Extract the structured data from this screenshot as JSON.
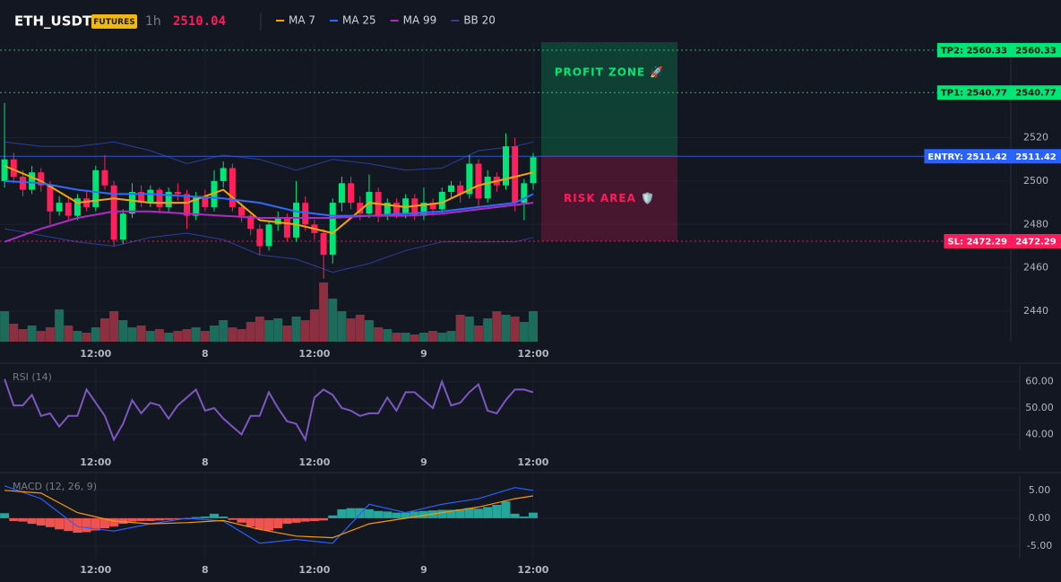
{
  "header": {
    "symbol": "ETH_USDT",
    "badge": "FUTURES",
    "interval": "1h",
    "price": 2510.04
  },
  "chart_data": [
    {
      "type": "candlestick",
      "x": [
        0,
        1,
        2,
        3,
        4,
        5,
        6,
        7,
        8,
        9,
        10,
        11,
        12,
        13,
        14,
        15,
        16,
        17,
        18,
        19,
        20,
        21,
        22,
        23,
        24,
        25,
        26,
        27,
        28,
        29,
        30,
        31,
        32,
        33,
        34,
        35,
        36,
        37,
        38,
        39,
        40,
        41,
        42,
        43,
        44,
        45,
        46,
        47,
        48,
        49,
        50,
        51,
        52,
        53,
        54,
        55,
        56,
        57,
        58
      ],
      "open": [
        2500,
        2510,
        2502,
        2496,
        2504,
        2498,
        2486,
        2490,
        2484,
        2492,
        2488,
        2505,
        2498,
        2473,
        2485,
        2495,
        2490,
        2496,
        2488,
        2495,
        2494,
        2484,
        2493,
        2488,
        2500,
        2506,
        2488,
        2484,
        2478,
        2470,
        2480,
        2483,
        2474,
        2490,
        2480,
        2476,
        2466,
        2490,
        2499,
        2490,
        2485,
        2495,
        2484,
        2490,
        2485,
        2492,
        2484,
        2490,
        2487,
        2495,
        2498,
        2494,
        2508,
        2492,
        2502,
        2498,
        2516,
        2490,
        2499
      ],
      "high": [
        2536,
        2513,
        2505,
        2507,
        2506,
        2500,
        2493,
        2492,
        2494,
        2495,
        2507,
        2512,
        2500,
        2487,
        2499,
        2498,
        2498,
        2497,
        2497,
        2499,
        2496,
        2495,
        2496,
        2505,
        2509,
        2508,
        2490,
        2486,
        2480,
        2482,
        2486,
        2485,
        2500,
        2493,
        2482,
        2478,
        2492,
        2502,
        2502,
        2493,
        2503,
        2497,
        2492,
        2492,
        2494,
        2494,
        2497,
        2492,
        2497,
        2500,
        2500,
        2512,
        2510,
        2505,
        2504,
        2522,
        2520,
        2501,
        2513
      ],
      "low": [
        2497,
        2499,
        2493,
        2494,
        2495,
        2480,
        2484,
        2482,
        2482,
        2486,
        2486,
        2496,
        2470,
        2471,
        2483,
        2488,
        2488,
        2485,
        2486,
        2491,
        2478,
        2482,
        2486,
        2486,
        2497,
        2486,
        2481,
        2475,
        2466,
        2468,
        2477,
        2472,
        2472,
        2477,
        2473,
        2455,
        2462,
        2486,
        2487,
        2482,
        2483,
        2481,
        2482,
        2483,
        2483,
        2482,
        2482,
        2484,
        2485,
        2492,
        2490,
        2492,
        2488,
        2490,
        2495,
        2496,
        2486,
        2482,
        2496
      ],
      "close": [
        2510,
        2502,
        2496,
        2504,
        2498,
        2486,
        2490,
        2484,
        2492,
        2488,
        2505,
        2498,
        2473,
        2485,
        2495,
        2490,
        2496,
        2488,
        2495,
        2494,
        2484,
        2493,
        2488,
        2500,
        2506,
        2488,
        2484,
        2478,
        2470,
        2480,
        2483,
        2474,
        2490,
        2480,
        2476,
        2466,
        2490,
        2499,
        2490,
        2485,
        2495,
        2484,
        2490,
        2485,
        2492,
        2484,
        2490,
        2487,
        2495,
        2498,
        2494,
        2508,
        2492,
        2502,
        2498,
        2516,
        2490,
        2499,
        2511
      ],
      "volume": [
        34,
        20,
        14,
        18,
        12,
        16,
        36,
        18,
        12,
        10,
        16,
        26,
        34,
        24,
        16,
        18,
        12,
        14,
        10,
        12,
        14,
        16,
        12,
        18,
        24,
        16,
        14,
        22,
        28,
        24,
        26,
        18,
        28,
        24,
        36,
        66,
        48,
        34,
        26,
        30,
        24,
        16,
        14,
        10,
        10,
        8,
        10,
        12,
        10,
        12,
        30,
        28,
        18,
        26,
        34,
        30,
        28,
        22,
        34
      ],
      "up_color": "#00e676",
      "down_color": "#ff1f5a",
      "volume_up_color": "#1d6b5a",
      "volume_down_color": "#8c2f41",
      "xlim": [
        -0.5,
        110.4
      ],
      "xticks": [
        {
          "value": 10,
          "label": "12:00"
        },
        {
          "value": 22,
          "label": "8"
        },
        {
          "value": 34,
          "label": "12:00"
        },
        {
          "value": 46,
          "label": "9"
        },
        {
          "value": 58,
          "label": "12:00"
        }
      ],
      "ylim": [
        2426,
        2564
      ],
      "yticks": [
        2520,
        2500,
        2480,
        2460,
        2440
      ],
      "grid": true,
      "series": [
        {
          "name": "MA 7",
          "color": "#f7a600",
          "x": [
            0,
            4,
            8,
            12,
            16,
            20,
            24,
            28,
            32,
            36,
            40,
            44,
            48,
            52,
            56,
            58
          ],
          "values": [
            2507,
            2500,
            2490,
            2492,
            2490,
            2490,
            2496,
            2482,
            2480,
            2476,
            2490,
            2488,
            2490,
            2498,
            2502,
            2504
          ]
        },
        {
          "name": "MA 25",
          "color": "#2f6bff",
          "x": [
            0,
            4,
            8,
            12,
            16,
            20,
            24,
            28,
            32,
            36,
            40,
            44,
            48,
            52,
            56,
            58
          ],
          "values": [
            2500,
            2499,
            2496,
            2494,
            2494,
            2493,
            2492,
            2490,
            2486,
            2484,
            2484,
            2485,
            2486,
            2488,
            2490,
            2494
          ]
        },
        {
          "name": "MA 99",
          "color": "#b02bc6",
          "x": [
            0,
            4,
            8,
            12,
            16,
            20,
            24,
            28,
            32,
            36,
            40,
            44,
            48,
            52,
            56,
            58
          ],
          "values": [
            2472,
            2478,
            2483,
            2486,
            2486,
            2485,
            2484,
            2483,
            2483,
            2483,
            2484,
            2484,
            2485,
            2487,
            2489,
            2490
          ]
        }
      ],
      "bands": [
        {
          "name": "BB 20",
          "color": "#2b3f9a",
          "x": [
            0,
            4,
            8,
            12,
            16,
            20,
            24,
            28,
            32,
            36,
            40,
            44,
            48,
            52,
            56,
            58
          ],
          "upper": [
            2518,
            2516,
            2516,
            2518,
            2514,
            2508,
            2512,
            2510,
            2505,
            2510,
            2508,
            2505,
            2506,
            2514,
            2516,
            2518
          ],
          "lower": [
            2478,
            2475,
            2472,
            2470,
            2474,
            2476,
            2473,
            2466,
            2464,
            2458,
            2462,
            2468,
            2472,
            2472,
            2472,
            2474
          ]
        }
      ],
      "levels": [
        {
          "label": "TP2: 2560.33",
          "value": 2560.33,
          "color": "#00e676",
          "text_color": "#0b1a12"
        },
        {
          "label": "TP1: 2540.77",
          "value": 2540.77,
          "color": "#00e676",
          "text_color": "#0b1a12"
        },
        {
          "label": "ENTRY: 2511.42",
          "value": 2511.42,
          "color": "#2962ff",
          "text_color": "#ffffff"
        },
        {
          "label": "SL: 2472.29",
          "value": 2472.29,
          "color": "#ff1a5b",
          "text_color": "#ffffff"
        }
      ],
      "zones": [
        {
          "label": "PROFIT ZONE 🚀",
          "color": "#00e676"
        },
        {
          "label": "RISK AREA 🛡️",
          "color": "#ff1a5b"
        }
      ]
    },
    {
      "type": "line",
      "title": "RSI (14)",
      "color": "#7e57c2",
      "x": [
        0,
        1,
        2,
        3,
        4,
        5,
        6,
        7,
        8,
        9,
        10,
        11,
        12,
        13,
        14,
        15,
        16,
        17,
        18,
        19,
        20,
        21,
        22,
        23,
        24,
        25,
        26,
        27,
        28,
        29,
        30,
        31,
        32,
        33,
        34,
        35,
        36,
        37,
        38,
        39,
        40,
        41,
        42,
        43,
        44,
        45,
        46,
        47,
        48,
        49,
        50,
        51,
        52,
        53,
        54,
        55,
        56,
        57,
        58
      ],
      "values": [
        61,
        51,
        51,
        55,
        47,
        48,
        43,
        47,
        47,
        57,
        52,
        47,
        38,
        44,
        53,
        48,
        52,
        51,
        46,
        51,
        54,
        57,
        49,
        50,
        46,
        43,
        40,
        47,
        47,
        56,
        50,
        45,
        44,
        38,
        54,
        57,
        55,
        50,
        49,
        47,
        48,
        48,
        54,
        49,
        56,
        56,
        53,
        50,
        60,
        51,
        52,
        56,
        59,
        49,
        48,
        53,
        57,
        57,
        56
      ],
      "xlim": [
        -0.5,
        111.4
      ],
      "xticks": [
        {
          "value": 10,
          "label": "12:00"
        },
        {
          "value": 22,
          "label": "8"
        },
        {
          "value": 34,
          "label": "12:00"
        },
        {
          "value": 46,
          "label": "9"
        },
        {
          "value": 58,
          "label": "12:00"
        }
      ],
      "ylim": [
        34,
        66
      ],
      "yticks": [
        {
          "value": 60,
          "label": "60.00"
        },
        {
          "value": 50,
          "label": "50.00"
        },
        {
          "value": 40,
          "label": "40.00"
        }
      ],
      "grid": true
    },
    {
      "type": "macd",
      "title": "MACD (12, 26, 9)",
      "x": [
        0,
        1,
        2,
        3,
        4,
        5,
        6,
        7,
        8,
        9,
        10,
        11,
        12,
        13,
        14,
        15,
        16,
        17,
        18,
        19,
        20,
        21,
        22,
        23,
        24,
        25,
        26,
        27,
        28,
        29,
        30,
        31,
        32,
        33,
        34,
        35,
        36,
        37,
        38,
        39,
        40,
        41,
        42,
        43,
        44,
        45,
        46,
        47,
        48,
        49,
        50,
        51,
        52,
        53,
        54,
        55,
        56,
        57,
        58
      ],
      "histogram": [
        0.9,
        -0.5,
        -0.6,
        -1.0,
        -1.3,
        -1.6,
        -2.0,
        -2.3,
        -2.6,
        -2.5,
        -2.2,
        -1.8,
        -1.5,
        -1.0,
        -0.6,
        -0.5,
        -0.5,
        -0.4,
        -0.3,
        -0.2,
        -0.2,
        0.2,
        0.3,
        0.8,
        0.3,
        -0.3,
        -0.8,
        -1.5,
        -2.0,
        -2.2,
        -1.8,
        -1.0,
        -0.8,
        -0.6,
        -0.5,
        -0.4,
        0.5,
        1.6,
        1.8,
        1.8,
        1.6,
        1.3,
        1.2,
        1.0,
        1.0,
        1.2,
        1.3,
        1.4,
        1.5,
        1.5,
        1.6,
        1.8,
        1.7,
        2.0,
        2.4,
        3.0,
        0.8,
        0.3,
        1.0
      ],
      "positive_color": "#26a69a",
      "negative_color": "#ef5350",
      "series": [
        {
          "color": "#2962ff",
          "x": [
            0,
            4,
            8,
            12,
            16,
            20,
            24,
            28,
            32,
            36,
            40,
            44,
            48,
            52,
            56,
            58
          ],
          "values": [
            5.8,
            3.5,
            -1.5,
            -2.3,
            -1.0,
            0.0,
            -0.5,
            -4.5,
            -3.8,
            -4.5,
            2.5,
            1.0,
            2.5,
            3.5,
            5.5,
            5.0
          ]
        },
        {
          "color": "#ff9800",
          "x": [
            0,
            4,
            8,
            12,
            16,
            20,
            24,
            28,
            32,
            36,
            40,
            44,
            48,
            52,
            56,
            58
          ],
          "values": [
            5.0,
            4.5,
            1.0,
            -0.5,
            -1.0,
            -0.8,
            -0.4,
            -2.0,
            -3.2,
            -3.5,
            -1.0,
            0.0,
            1.0,
            2.0,
            3.5,
            4.0
          ]
        }
      ],
      "xlim": [
        -0.5,
        111.4
      ],
      "xticks": [
        {
          "value": 10,
          "label": "12:00"
        },
        {
          "value": 22,
          "label": "8"
        },
        {
          "value": 34,
          "label": "12:00"
        },
        {
          "value": 46,
          "label": "9"
        },
        {
          "value": 58,
          "label": "12:00"
        }
      ],
      "ylim": [
        -7.1,
        7.7
      ],
      "yticks": [
        {
          "value": 5,
          "label": "5.00"
        },
        {
          "value": 0,
          "label": "0.00"
        },
        {
          "value": -5,
          "label": "-5.00"
        }
      ],
      "grid": true
    }
  ]
}
